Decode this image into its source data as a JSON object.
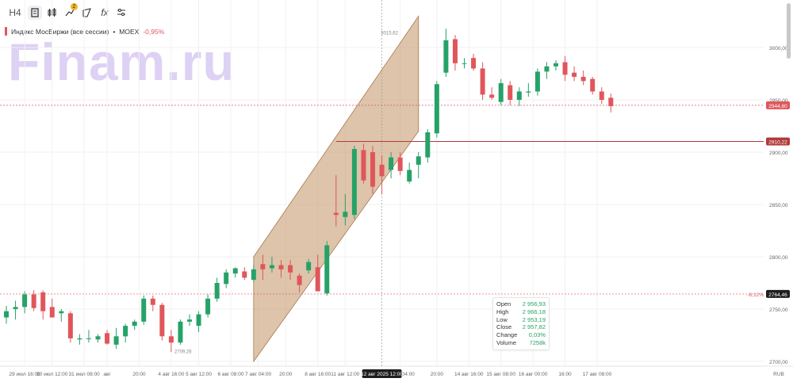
{
  "toolbar": {
    "timeframe": "H4",
    "indicators_badge": "2",
    "fx_label": "fx",
    "icons": [
      "chart-type-icon",
      "candles-icon",
      "indicators-icon",
      "drawing-icon",
      "function-icon",
      "settings-icon"
    ]
  },
  "legend": {
    "instrument": "Индекс МосБиржи (все сессии)",
    "separator": "•",
    "ticker": "MOEX",
    "change": "-0,95%",
    "accent_color": "#e0565b"
  },
  "watermark": "Finam.ru",
  "ohlc": {
    "rows": [
      {
        "label": "Open",
        "value": "2 956,93"
      },
      {
        "label": "High",
        "value": "2 966,18"
      },
      {
        "label": "Low",
        "value": "2 953,19"
      },
      {
        "label": "Close",
        "value": "2 957,82"
      },
      {
        "label": "Change",
        "value": "0,03%"
      },
      {
        "label": "Volume",
        "value": "7258k"
      }
    ]
  },
  "chart_data": {
    "type": "candlestick",
    "title": "",
    "colors": {
      "up": "#26a268",
      "down": "#e0565b",
      "channel": "#c79d72",
      "level": "#b23a3a"
    },
    "y_axis": {
      "min": 2700,
      "max": 3030,
      "ticks": [
        {
          "v": 2700,
          "label": "2700,00"
        },
        {
          "v": 2750,
          "label": "2750,00"
        },
        {
          "v": 2800,
          "label": "2800,00"
        },
        {
          "v": 2850,
          "label": "2850,00"
        },
        {
          "v": 2900,
          "label": "2900,00"
        },
        {
          "v": 2950,
          "label": "2950,00"
        },
        {
          "v": 3000,
          "label": "3000,00"
        }
      ],
      "currency": "RUB"
    },
    "x_axis": {
      "labels": [
        {
          "i": 2,
          "label": "29 июл 16:00"
        },
        {
          "i": 5,
          "label": "30 июл 12:00"
        },
        {
          "i": 8.5,
          "label": "31 июл 08:00"
        },
        {
          "i": 11,
          "label": "авг"
        },
        {
          "i": 14.5,
          "label": "20:00"
        },
        {
          "i": 18,
          "label": "4 авг 16:00"
        },
        {
          "i": 21,
          "label": "5 авг 12:00"
        },
        {
          "i": 24.5,
          "label": "6 авг 08:00"
        },
        {
          "i": 27.5,
          "label": "7 авг 04:00"
        },
        {
          "i": 30.5,
          "label": "20:00"
        },
        {
          "i": 34,
          "label": "8 авг 16:00"
        },
        {
          "i": 37,
          "label": "11 авг 12:00"
        },
        {
          "i": 43,
          "label": "13 авг 04:00"
        },
        {
          "i": 47,
          "label": "20:00"
        },
        {
          "i": 50.5,
          "label": "14 авг 16:00"
        },
        {
          "i": 54,
          "label": "15 авг 08:00"
        },
        {
          "i": 57.5,
          "label": "16 авг 00:00"
        },
        {
          "i": 61,
          "label": "16:00"
        },
        {
          "i": 64.5,
          "label": "17 авг 08:00"
        }
      ],
      "crosshair_label": "12 авг 2025 12:00",
      "crosshair_index": 41
    },
    "candles": [
      {
        "o": 2742,
        "h": 2753,
        "l": 2736,
        "c": 2748
      },
      {
        "o": 2750,
        "h": 2758,
        "l": 2740,
        "c": 2752
      },
      {
        "o": 2752,
        "h": 2767,
        "l": 2746,
        "c": 2764
      },
      {
        "o": 2764,
        "h": 2768,
        "l": 2748,
        "c": 2751
      },
      {
        "o": 2766,
        "h": 2768,
        "l": 2740,
        "c": 2748
      },
      {
        "o": 2752,
        "h": 2760,
        "l": 2742,
        "c": 2742
      },
      {
        "o": 2746,
        "h": 2750,
        "l": 2738,
        "c": 2748
      },
      {
        "o": 2746,
        "h": 2748,
        "l": 2718,
        "c": 2722
      },
      {
        "o": 2721,
        "h": 2726,
        "l": 2716,
        "c": 2722
      },
      {
        "o": 2722,
        "h": 2730,
        "l": 2718,
        "c": 2722
      },
      {
        "o": 2721,
        "h": 2726,
        "l": 2718,
        "c": 2724
      },
      {
        "o": 2727,
        "h": 2730,
        "l": 2716,
        "c": 2717
      },
      {
        "o": 2716,
        "h": 2732,
        "l": 2712,
        "c": 2724
      },
      {
        "o": 2724,
        "h": 2736,
        "l": 2718,
        "c": 2734
      },
      {
        "o": 2734,
        "h": 2740,
        "l": 2730,
        "c": 2738
      },
      {
        "o": 2738,
        "h": 2763,
        "l": 2735,
        "c": 2760
      },
      {
        "o": 2760,
        "h": 2763,
        "l": 2748,
        "c": 2754
      },
      {
        "o": 2754,
        "h": 2756,
        "l": 2720,
        "c": 2724
      },
      {
        "o": 2724,
        "h": 2730,
        "l": 2709,
        "c": 2718
      },
      {
        "o": 2718,
        "h": 2740,
        "l": 2716,
        "c": 2738
      },
      {
        "o": 2738,
        "h": 2745,
        "l": 2734,
        "c": 2740
      },
      {
        "o": 2734,
        "h": 2748,
        "l": 2728,
        "c": 2745
      },
      {
        "o": 2745,
        "h": 2764,
        "l": 2742,
        "c": 2760
      },
      {
        "o": 2760,
        "h": 2780,
        "l": 2757,
        "c": 2775
      },
      {
        "o": 2774,
        "h": 2788,
        "l": 2770,
        "c": 2785
      },
      {
        "o": 2784,
        "h": 2790,
        "l": 2780,
        "c": 2789
      },
      {
        "o": 2786,
        "h": 2790,
        "l": 2778,
        "c": 2780
      },
      {
        "o": 2778,
        "h": 2792,
        "l": 2776,
        "c": 2788
      },
      {
        "o": 2793,
        "h": 2802,
        "l": 2778,
        "c": 2788
      },
      {
        "o": 2789,
        "h": 2800,
        "l": 2785,
        "c": 2792
      },
      {
        "o": 2792,
        "h": 2797,
        "l": 2780,
        "c": 2788
      },
      {
        "o": 2792,
        "h": 2797,
        "l": 2778,
        "c": 2785
      },
      {
        "o": 2782,
        "h": 2784,
        "l": 2766,
        "c": 2773
      },
      {
        "o": 2787,
        "h": 2798,
        "l": 2784,
        "c": 2795
      },
      {
        "o": 2790,
        "h": 2802,
        "l": 2770,
        "c": 2767
      },
      {
        "o": 2765,
        "h": 2815,
        "l": 2763,
        "c": 2811
      },
      {
        "o": 2842,
        "h": 2878,
        "l": 2829,
        "c": 2840
      },
      {
        "o": 2838,
        "h": 2860,
        "l": 2830,
        "c": 2843
      },
      {
        "o": 2840,
        "h": 2906,
        "l": 2836,
        "c": 2903
      },
      {
        "o": 2902,
        "h": 2908,
        "l": 2870,
        "c": 2873
      },
      {
        "o": 2900,
        "h": 2906,
        "l": 2860,
        "c": 2867
      },
      {
        "o": 2888,
        "h": 2897,
        "l": 2860,
        "c": 2877
      },
      {
        "o": 2883,
        "h": 2900,
        "l": 2875,
        "c": 2895
      },
      {
        "o": 2895,
        "h": 2900,
        "l": 2878,
        "c": 2882
      },
      {
        "o": 2872,
        "h": 2890,
        "l": 2870,
        "c": 2883
      },
      {
        "o": 2888,
        "h": 2900,
        "l": 2875,
        "c": 2896
      },
      {
        "o": 2895,
        "h": 2922,
        "l": 2890,
        "c": 2919
      },
      {
        "o": 2918,
        "h": 2968,
        "l": 2914,
        "c": 2965
      },
      {
        "o": 2976,
        "h": 3018,
        "l": 2972,
        "c": 3007
      },
      {
        "o": 3008,
        "h": 3012,
        "l": 2978,
        "c": 2985
      },
      {
        "o": 2985,
        "h": 2990,
        "l": 2980,
        "c": 2985
      },
      {
        "o": 2990,
        "h": 2994,
        "l": 2978,
        "c": 2980
      },
      {
        "o": 2980,
        "h": 2986,
        "l": 2950,
        "c": 2955
      },
      {
        "o": 2955,
        "h": 2962,
        "l": 2950,
        "c": 2952
      },
      {
        "o": 2948,
        "h": 2970,
        "l": 2945,
        "c": 2966
      },
      {
        "o": 2964,
        "h": 2968,
        "l": 2945,
        "c": 2950
      },
      {
        "o": 2950,
        "h": 2962,
        "l": 2944,
        "c": 2958
      },
      {
        "o": 2957,
        "h": 2966,
        "l": 2953,
        "c": 2958
      },
      {
        "o": 2958,
        "h": 2980,
        "l": 2954,
        "c": 2977
      },
      {
        "o": 2977,
        "h": 2986,
        "l": 2970,
        "c": 2982
      },
      {
        "o": 2982,
        "h": 2988,
        "l": 2978,
        "c": 2985
      },
      {
        "o": 2986,
        "h": 2992,
        "l": 2968,
        "c": 2974
      },
      {
        "o": 2976,
        "h": 2982,
        "l": 2968,
        "c": 2972
      },
      {
        "o": 2972,
        "h": 2978,
        "l": 2964,
        "c": 2968
      },
      {
        "o": 2970,
        "h": 2972,
        "l": 2955,
        "c": 2958
      },
      {
        "o": 2958,
        "h": 2962,
        "l": 2946,
        "c": 2950
      },
      {
        "o": 2952,
        "h": 2956,
        "l": 2938,
        "c": 2944
      }
    ],
    "channel": {
      "lower_start": {
        "i": 27,
        "v": 2700
      },
      "lower_end": {
        "i": 45,
        "v": 2920
      },
      "upper_start": {
        "i": 27,
        "v": 2800
      },
      "upper_end": {
        "i": 45,
        "v": 3030
      }
    },
    "levels": [
      {
        "v": 2910.22,
        "label": "2910,22",
        "style": "solid",
        "color": "#b23a3a"
      },
      {
        "v": 2944.8,
        "label": "2944,80",
        "style": "dashed",
        "color": "#e0565b"
      },
      {
        "v": 2764.46,
        "label": "2764,46",
        "style": "dashed",
        "color": "#e0565b",
        "dark": true
      }
    ],
    "annotations": [
      {
        "text": "3015,62",
        "i": 42,
        "v": 3015.6
      },
      {
        "text": "2709,26",
        "i": 18,
        "v": 2709.3
      },
      {
        "text": "-8,12%",
        "at_level": 2764.46
      }
    ]
  }
}
